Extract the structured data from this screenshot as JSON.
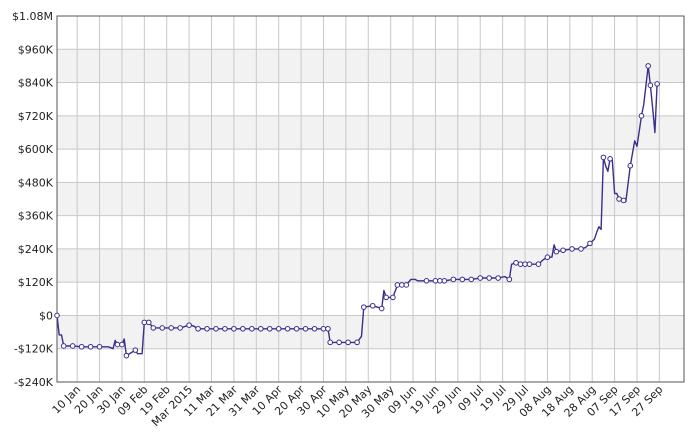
{
  "chart_data": {
    "type": "line",
    "title": "",
    "xlabel": "",
    "ylabel": "",
    "x_range": [
      "2015-01-01",
      "2015-10-08"
    ],
    "ylim": [
      -240000,
      1080000
    ],
    "y_ticks": [
      {
        "value": 1080000,
        "label": "$1.08M"
      },
      {
        "value": 960000,
        "label": "$960K"
      },
      {
        "value": 840000,
        "label": "$840K"
      },
      {
        "value": 720000,
        "label": "$720K"
      },
      {
        "value": 600000,
        "label": "$600K"
      },
      {
        "value": 480000,
        "label": "$480K"
      },
      {
        "value": 360000,
        "label": "$360K"
      },
      {
        "value": 240000,
        "label": "$240K"
      },
      {
        "value": 120000,
        "label": "$120K"
      },
      {
        "value": 0,
        "label": "$0"
      },
      {
        "value": -120000,
        "label": "-$120K"
      },
      {
        "value": -240000,
        "label": "-$240K"
      }
    ],
    "x_ticks": [
      {
        "date": "2015-01-10",
        "label": "10 Jan"
      },
      {
        "date": "2015-01-20",
        "label": "20 Jan"
      },
      {
        "date": "2015-01-30",
        "label": "30 Jan"
      },
      {
        "date": "2015-02-09",
        "label": "09 Feb"
      },
      {
        "date": "2015-02-19",
        "label": "19 Feb"
      },
      {
        "date": "2015-03-01",
        "label": "Mar 2015"
      },
      {
        "date": "2015-03-11",
        "label": "11 Mar"
      },
      {
        "date": "2015-03-21",
        "label": "21 Mar"
      },
      {
        "date": "2015-03-31",
        "label": "31 Mar"
      },
      {
        "date": "2015-04-10",
        "label": "10 Apr"
      },
      {
        "date": "2015-04-20",
        "label": "20 Apr"
      },
      {
        "date": "2015-04-30",
        "label": "30 Apr"
      },
      {
        "date": "2015-05-10",
        "label": "10 May"
      },
      {
        "date": "2015-05-20",
        "label": "20 May"
      },
      {
        "date": "2015-05-30",
        "label": "30 May"
      },
      {
        "date": "2015-06-09",
        "label": "09 Jun"
      },
      {
        "date": "2015-06-19",
        "label": "19 Jun"
      },
      {
        "date": "2015-06-29",
        "label": "29 Jun"
      },
      {
        "date": "2015-07-09",
        "label": "09 Jul"
      },
      {
        "date": "2015-07-19",
        "label": "19 Jul"
      },
      {
        "date": "2015-07-29",
        "label": "29 Jul"
      },
      {
        "date": "2015-08-08",
        "label": "08 Aug"
      },
      {
        "date": "2015-08-18",
        "label": "18 Aug"
      },
      {
        "date": "2015-08-28",
        "label": "28 Aug"
      },
      {
        "date": "2015-09-07",
        "label": "07 Sep"
      },
      {
        "date": "2015-09-17",
        "label": "17 Sep"
      },
      {
        "date": "2015-09-27",
        "label": "27 Sep"
      }
    ],
    "grid": true,
    "legend": "none",
    "colors": {
      "line": "#3a2f8c",
      "marker_fill": "#ffffff",
      "band": "#f2f2f2",
      "grid": "#c8c8c8"
    },
    "series": [
      {
        "values": [
          {
            "x": "2015-01-01",
            "y": 0,
            "marker": true
          },
          {
            "x": "2015-01-02",
            "y": -70000,
            "marker": false
          },
          {
            "x": "2015-01-03",
            "y": -70000,
            "marker": false
          },
          {
            "x": "2015-01-04",
            "y": -110000,
            "marker": true
          },
          {
            "x": "2015-01-08",
            "y": -110000,
            "marker": true
          },
          {
            "x": "2015-01-12",
            "y": -113000,
            "marker": true
          },
          {
            "x": "2015-01-16",
            "y": -113000,
            "marker": true
          },
          {
            "x": "2015-01-20",
            "y": -113000,
            "marker": true
          },
          {
            "x": "2015-01-24",
            "y": -113000,
            "marker": false
          },
          {
            "x": "2015-01-26",
            "y": -120000,
            "marker": false
          },
          {
            "x": "2015-01-27",
            "y": -90000,
            "marker": false
          },
          {
            "x": "2015-01-28",
            "y": -105000,
            "marker": true
          },
          {
            "x": "2015-01-30",
            "y": -105000,
            "marker": true
          },
          {
            "x": "2015-01-31",
            "y": -85000,
            "marker": false
          },
          {
            "x": "2015-02-01",
            "y": -145000,
            "marker": true
          },
          {
            "x": "2015-02-03",
            "y": -135000,
            "marker": false
          },
          {
            "x": "2015-02-05",
            "y": -125000,
            "marker": true
          },
          {
            "x": "2015-02-06",
            "y": -138000,
            "marker": false
          },
          {
            "x": "2015-02-08",
            "y": -138000,
            "marker": false
          },
          {
            "x": "2015-02-09",
            "y": -25000,
            "marker": true
          },
          {
            "x": "2015-02-11",
            "y": -25000,
            "marker": true
          },
          {
            "x": "2015-02-13",
            "y": -45000,
            "marker": true
          },
          {
            "x": "2015-02-17",
            "y": -45000,
            "marker": true
          },
          {
            "x": "2015-02-21",
            "y": -45000,
            "marker": true
          },
          {
            "x": "2015-02-25",
            "y": -45000,
            "marker": true
          },
          {
            "x": "2015-03-01",
            "y": -35000,
            "marker": true
          },
          {
            "x": "2015-03-03",
            "y": -38000,
            "marker": false
          },
          {
            "x": "2015-03-05",
            "y": -48000,
            "marker": true
          },
          {
            "x": "2015-03-09",
            "y": -48000,
            "marker": true
          },
          {
            "x": "2015-03-13",
            "y": -48000,
            "marker": true
          },
          {
            "x": "2015-03-17",
            "y": -48000,
            "marker": true
          },
          {
            "x": "2015-03-21",
            "y": -48000,
            "marker": true
          },
          {
            "x": "2015-03-25",
            "y": -48000,
            "marker": true
          },
          {
            "x": "2015-03-29",
            "y": -48000,
            "marker": true
          },
          {
            "x": "2015-04-02",
            "y": -48000,
            "marker": true
          },
          {
            "x": "2015-04-06",
            "y": -48000,
            "marker": true
          },
          {
            "x": "2015-04-10",
            "y": -48000,
            "marker": true
          },
          {
            "x": "2015-04-14",
            "y": -48000,
            "marker": true
          },
          {
            "x": "2015-04-18",
            "y": -48000,
            "marker": true
          },
          {
            "x": "2015-04-22",
            "y": -48000,
            "marker": true
          },
          {
            "x": "2015-04-26",
            "y": -48000,
            "marker": true
          },
          {
            "x": "2015-04-30",
            "y": -48000,
            "marker": true
          },
          {
            "x": "2015-05-02",
            "y": -48000,
            "marker": true
          },
          {
            "x": "2015-05-03",
            "y": -97000,
            "marker": true
          },
          {
            "x": "2015-05-07",
            "y": -97000,
            "marker": true
          },
          {
            "x": "2015-05-11",
            "y": -97000,
            "marker": true
          },
          {
            "x": "2015-05-15",
            "y": -97000,
            "marker": true
          },
          {
            "x": "2015-05-17",
            "y": -75000,
            "marker": false
          },
          {
            "x": "2015-05-18",
            "y": 30000,
            "marker": true
          },
          {
            "x": "2015-05-22",
            "y": 35000,
            "marker": true
          },
          {
            "x": "2015-05-24",
            "y": 30000,
            "marker": false
          },
          {
            "x": "2015-05-26",
            "y": 25000,
            "marker": true
          },
          {
            "x": "2015-05-27",
            "y": 90000,
            "marker": false
          },
          {
            "x": "2015-05-28",
            "y": 65000,
            "marker": true
          },
          {
            "x": "2015-05-31",
            "y": 65000,
            "marker": true
          },
          {
            "x": "2015-06-02",
            "y": 110000,
            "marker": true
          },
          {
            "x": "2015-06-04",
            "y": 110000,
            "marker": true
          },
          {
            "x": "2015-06-06",
            "y": 110000,
            "marker": true
          },
          {
            "x": "2015-06-08",
            "y": 130000,
            "marker": false
          },
          {
            "x": "2015-06-10",
            "y": 130000,
            "marker": false
          },
          {
            "x": "2015-06-11",
            "y": 125000,
            "marker": false
          },
          {
            "x": "2015-06-15",
            "y": 125000,
            "marker": true
          },
          {
            "x": "2015-06-19",
            "y": 125000,
            "marker": true
          },
          {
            "x": "2015-06-21",
            "y": 125000,
            "marker": true
          },
          {
            "x": "2015-06-23",
            "y": 125000,
            "marker": true
          },
          {
            "x": "2015-06-27",
            "y": 130000,
            "marker": true
          },
          {
            "x": "2015-07-01",
            "y": 130000,
            "marker": true
          },
          {
            "x": "2015-07-05",
            "y": 130000,
            "marker": true
          },
          {
            "x": "2015-07-09",
            "y": 135000,
            "marker": true
          },
          {
            "x": "2015-07-13",
            "y": 135000,
            "marker": true
          },
          {
            "x": "2015-07-17",
            "y": 135000,
            "marker": true
          },
          {
            "x": "2015-07-20",
            "y": 140000,
            "marker": false
          },
          {
            "x": "2015-07-22",
            "y": 130000,
            "marker": true
          },
          {
            "x": "2015-07-23",
            "y": 185000,
            "marker": false
          },
          {
            "x": "2015-07-25",
            "y": 190000,
            "marker": true
          },
          {
            "x": "2015-07-27",
            "y": 185000,
            "marker": true
          },
          {
            "x": "2015-07-29",
            "y": 185000,
            "marker": true
          },
          {
            "x": "2015-07-31",
            "y": 185000,
            "marker": true
          },
          {
            "x": "2015-08-04",
            "y": 185000,
            "marker": true
          },
          {
            "x": "2015-08-06",
            "y": 200000,
            "marker": false
          },
          {
            "x": "2015-08-08",
            "y": 210000,
            "marker": true
          },
          {
            "x": "2015-08-10",
            "y": 210000,
            "marker": false
          },
          {
            "x": "2015-08-11",
            "y": 255000,
            "marker": false
          },
          {
            "x": "2015-08-12",
            "y": 230000,
            "marker": true
          },
          {
            "x": "2015-08-15",
            "y": 235000,
            "marker": true
          },
          {
            "x": "2015-08-19",
            "y": 240000,
            "marker": true
          },
          {
            "x": "2015-08-23",
            "y": 240000,
            "marker": true
          },
          {
            "x": "2015-08-25",
            "y": 245000,
            "marker": false
          },
          {
            "x": "2015-08-27",
            "y": 260000,
            "marker": true
          },
          {
            "x": "2015-08-29",
            "y": 275000,
            "marker": false
          },
          {
            "x": "2015-08-30",
            "y": 300000,
            "marker": false
          },
          {
            "x": "2015-08-31",
            "y": 320000,
            "marker": false
          },
          {
            "x": "2015-09-01",
            "y": 310000,
            "marker": false
          },
          {
            "x": "2015-09-02",
            "y": 570000,
            "marker": true
          },
          {
            "x": "2015-09-03",
            "y": 540000,
            "marker": false
          },
          {
            "x": "2015-09-04",
            "y": 520000,
            "marker": false
          },
          {
            "x": "2015-09-05",
            "y": 565000,
            "marker": true
          },
          {
            "x": "2015-09-06",
            "y": 560000,
            "marker": false
          },
          {
            "x": "2015-09-07",
            "y": 440000,
            "marker": false
          },
          {
            "x": "2015-09-08",
            "y": 440000,
            "marker": false
          },
          {
            "x": "2015-09-09",
            "y": 420000,
            "marker": true
          },
          {
            "x": "2015-09-11",
            "y": 415000,
            "marker": true
          },
          {
            "x": "2015-09-12",
            "y": 410000,
            "marker": false
          },
          {
            "x": "2015-09-14",
            "y": 540000,
            "marker": true
          },
          {
            "x": "2015-09-16",
            "y": 630000,
            "marker": false
          },
          {
            "x": "2015-09-17",
            "y": 610000,
            "marker": false
          },
          {
            "x": "2015-09-19",
            "y": 720000,
            "marker": true
          },
          {
            "x": "2015-09-20",
            "y": 760000,
            "marker": false
          },
          {
            "x": "2015-09-22",
            "y": 900000,
            "marker": true
          },
          {
            "x": "2015-09-23",
            "y": 830000,
            "marker": true
          },
          {
            "x": "2015-09-24",
            "y": 750000,
            "marker": false
          },
          {
            "x": "2015-09-25",
            "y": 660000,
            "marker": false
          },
          {
            "x": "2015-09-26",
            "y": 835000,
            "marker": true
          }
        ]
      }
    ]
  }
}
